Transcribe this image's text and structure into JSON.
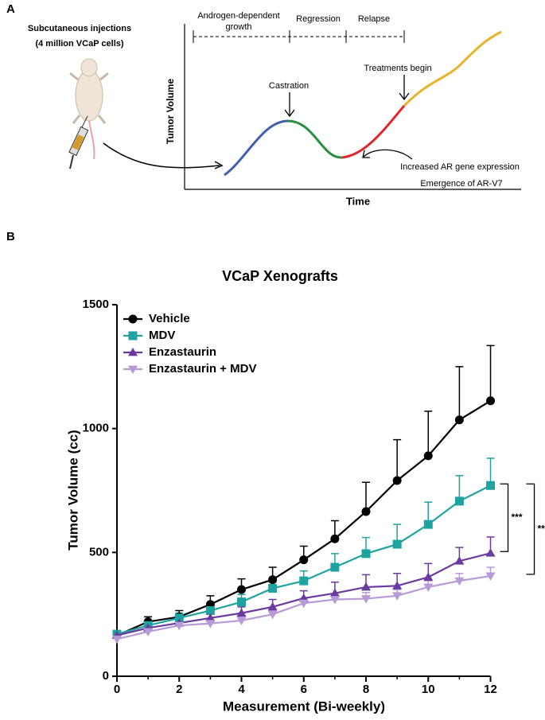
{
  "panel_a": {
    "label": "A",
    "injection_title": "Subcutaneous injections",
    "injection_detail": "(4 million VCaP cells)",
    "phases": [
      "Androgen-dependent",
      "growth",
      "Regression",
      "Relapse"
    ],
    "y_label": "Tumor Volume",
    "x_label": "Time",
    "events": [
      "Castration",
      "Treatments begin"
    ],
    "notes": [
      "Increased AR gene expression",
      "Emergence of AR-V7"
    ]
  },
  "panel_b": {
    "label": "B"
  },
  "chart_data": {
    "type": "line",
    "title": "VCaP Xenografts",
    "x_label": "Measurement (Bi-weekly)",
    "y_label": "Tumor Volume (cc)",
    "x": [
      0,
      1,
      2,
      3,
      4,
      5,
      6,
      7,
      8,
      9,
      10,
      11,
      12
    ],
    "xlim": [
      0,
      12.6
    ],
    "xticks": [
      0,
      2,
      4,
      6,
      8,
      10,
      12
    ],
    "ylim": [
      0,
      1500
    ],
    "yticks": [
      0,
      500,
      1000,
      1500
    ],
    "legend": "upper left",
    "series": [
      {
        "name": "Vehicle",
        "color": "#000000",
        "marker": "circle",
        "values": [
          165,
          220,
          240,
          290,
          350,
          390,
          470,
          555,
          665,
          790,
          890,
          1035,
          1112
        ],
        "errors": [
          10,
          20,
          25,
          35,
          43,
          50,
          55,
          73,
          118,
          165,
          180,
          215,
          223
        ]
      },
      {
        "name": "MDV",
        "color": "#1fa3a0",
        "marker": "square",
        "values": [
          170,
          205,
          235,
          265,
          300,
          355,
          385,
          440,
          495,
          533,
          613,
          707,
          770
        ],
        "errors": [
          10,
          15,
          20,
          25,
          30,
          25,
          40,
          55,
          65,
          80,
          90,
          103,
          110
        ]
      },
      {
        "name": "Enzastaurin",
        "color": "#6a3a9e",
        "marker": "triangle-up",
        "values": [
          165,
          195,
          215,
          235,
          255,
          280,
          315,
          335,
          360,
          365,
          400,
          465,
          497
        ],
        "errors": [
          10,
          15,
          20,
          20,
          25,
          30,
          30,
          45,
          50,
          50,
          55,
          55,
          65
        ]
      },
      {
        "name": "Enzastaurin + MDV",
        "color": "#b79ad6",
        "marker": "triangle-down",
        "values": [
          150,
          180,
          205,
          213,
          225,
          250,
          295,
          310,
          313,
          325,
          360,
          385,
          405
        ],
        "errors": [
          10,
          15,
          15,
          15,
          15,
          15,
          20,
          20,
          25,
          25,
          25,
          30,
          35
        ]
      }
    ],
    "annotations": [
      {
        "text": "***",
        "from": "MDV",
        "to": "Enzastaurin"
      },
      {
        "text": "***",
        "from": "MDV",
        "to": "Enzastaurin + MDV"
      }
    ]
  }
}
